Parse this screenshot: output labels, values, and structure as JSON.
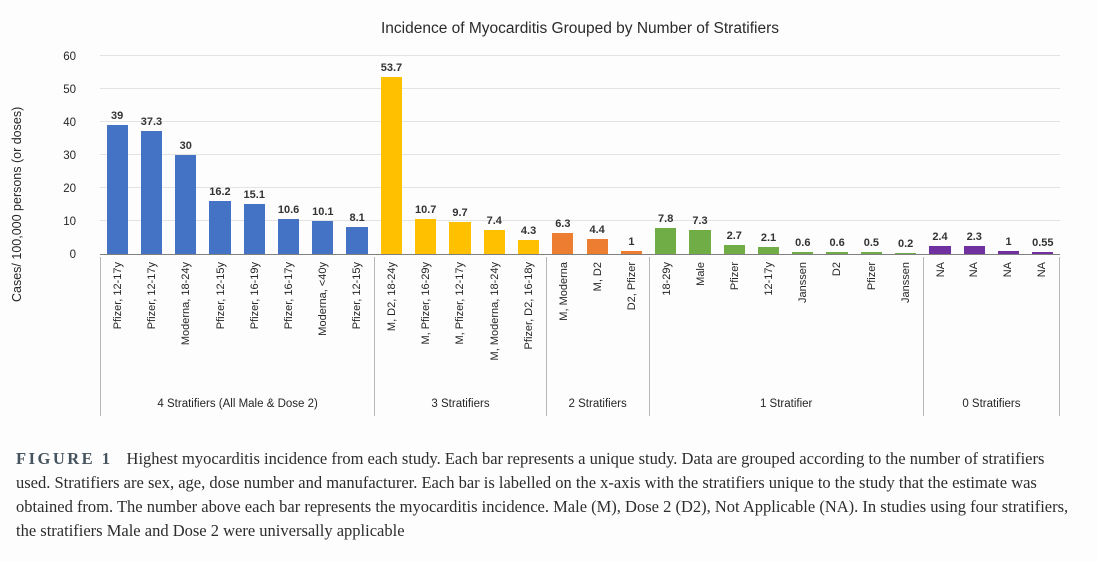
{
  "figure": {
    "caption_label": "FIGURE 1",
    "caption_text": "Highest myocarditis incidence from each study. Each bar represents a unique study. Data are grouped according to the number of stratifiers used. Stratifiers are sex, age, dose number and manufacturer. Each bar is labelled on the x-axis with the stratifiers unique to the study that the estimate was obtained from. The number above each bar represents the myocarditis incidence. Male (M), Dose 2 (D2), Not Applicable (NA). In studies using four stratifiers, the stratifiers Male and Dose 2 were universally applicable"
  },
  "chart_data": {
    "type": "bar",
    "title": "Incidence of Myocarditis Grouped by Number of Stratifiers",
    "ylabel": "Cases/ 100,000 persons (or doses)",
    "xlabel": "",
    "ylim": [
      0,
      60
    ],
    "yticks": [
      0,
      10,
      20,
      30,
      40,
      50,
      60
    ],
    "grid": true,
    "legend": false,
    "colors": {
      "axis_line": "#808080",
      "gridline": "#e3e3e3",
      "divider": "#b7b7b7",
      "text": "#262626"
    },
    "groups": [
      {
        "label": "4 Stratifiers (All Male & Dose 2)",
        "color": "#4472C4",
        "categories": [
          "Pfizer, 12-17y",
          "Pfizer, 12-17y",
          "Moderna, 18-24y",
          "Pfizer, 12-15y",
          "Pfizer, 16-19y",
          "Pfizer, 16-17y",
          "Moderna, <40y",
          "Pfizer, 12-15y"
        ],
        "values": [
          39,
          37.3,
          30,
          16.2,
          15.1,
          10.6,
          10.1,
          8.1
        ]
      },
      {
        "label": "3 Stratifiers",
        "color": "#FFC000",
        "categories": [
          "M, D2, 18-24y",
          "M, Pfizer, 16-29y",
          "M, Pfizer, 12-17y",
          "M, Moderna, 18-24y",
          "Pfizer, D2, 16-18y"
        ],
        "values": [
          53.7,
          10.7,
          9.7,
          7.4,
          4.3
        ]
      },
      {
        "label": "2 Stratifiers",
        "color": "#ED7D31",
        "categories": [
          "M, Moderna",
          "M, D2",
          "D2, Pfizer"
        ],
        "values": [
          6.3,
          4.4,
          1
        ]
      },
      {
        "label": "1 Stratifier",
        "color": "#70AD47",
        "categories": [
          "18-29y",
          "Male",
          "Pfizer",
          "12-17y",
          "Janssen",
          "D2",
          "Pfizer",
          "Janssen"
        ],
        "values": [
          7.8,
          7.3,
          2.7,
          2.1,
          0.6,
          0.6,
          0.5,
          0.2
        ]
      },
      {
        "label": "0 Stratifiers",
        "color": "#7030A0",
        "categories": [
          "NA",
          "NA",
          "NA",
          "NA"
        ],
        "values": [
          2.4,
          2.3,
          1,
          0.55
        ]
      }
    ]
  }
}
